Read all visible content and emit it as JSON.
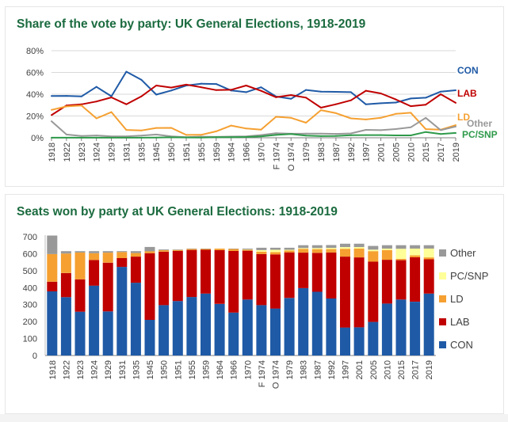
{
  "chart_data": [
    {
      "type": "line",
      "title": "Share of the vote by party: UK General Elections, 1918-2019",
      "categories": [
        "1918",
        "1922",
        "1923",
        "1924",
        "1929",
        "1931",
        "1935",
        "1945",
        "1950",
        "1951",
        "1955",
        "1959",
        "1964",
        "1966",
        "1970",
        "F 1974",
        "O 1974",
        "1979",
        "1983",
        "1987",
        "1992",
        "1997",
        "2001",
        "2005",
        "2010",
        "2015",
        "2017",
        "2019"
      ],
      "y_ticks": [
        "0%",
        "20%",
        "40%",
        "60%",
        "80%"
      ],
      "ylim": [
        0,
        80
      ],
      "grid": true,
      "series": [
        {
          "name": "CON",
          "color": "#1f5aa6",
          "values": [
            38.4,
            38.5,
            38.0,
            46.8,
            38.1,
            60.7,
            53.3,
            39.6,
            43.4,
            48.0,
            49.7,
            49.4,
            43.4,
            41.9,
            46.4,
            37.9,
            35.8,
            43.9,
            42.4,
            42.2,
            41.9,
            30.7,
            31.7,
            32.4,
            36.1,
            36.8,
            42.4,
            43.6
          ]
        },
        {
          "name": "LAB",
          "color": "#c00000",
          "values": [
            20.8,
            29.7,
            30.7,
            33.3,
            37.1,
            30.8,
            38.0,
            48.0,
            46.1,
            48.8,
            46.4,
            43.8,
            44.1,
            48.0,
            43.1,
            37.2,
            39.2,
            36.9,
            27.6,
            30.8,
            34.4,
            43.2,
            40.7,
            35.2,
            29.0,
            30.4,
            40.0,
            32.1
          ]
        },
        {
          "name": "LD",
          "color": "#f5a031",
          "values": [
            25.6,
            28.8,
            29.7,
            17.8,
            23.6,
            7.2,
            6.7,
            9.0,
            9.1,
            2.6,
            2.7,
            5.9,
            11.2,
            8.5,
            7.5,
            19.3,
            18.3,
            13.8,
            25.4,
            22.6,
            17.8,
            16.8,
            18.3,
            22.0,
            23.0,
            7.9,
            7.4,
            11.6
          ]
        },
        {
          "name": "Other",
          "color": "#999999",
          "values": [
            15.2,
            3.0,
            1.6,
            2.1,
            1.2,
            1.3,
            2.0,
            3.0,
            1.3,
            0.5,
            1.0,
            0.8,
            1.1,
            1.2,
            2.5,
            4.2,
            3.7,
            3.8,
            3.8,
            3.6,
            4.0,
            7.3,
            7.0,
            8.0,
            9.6,
            18.3,
            7.0,
            10.3
          ]
        },
        {
          "name": "PC/SNP",
          "color": "#2e9a4a",
          "values": [
            0.1,
            0.1,
            0.1,
            0.1,
            0.1,
            0.1,
            0.1,
            0.2,
            0.4,
            0.3,
            0.2,
            0.6,
            0.6,
            0.7,
            1.3,
            2.6,
            3.5,
            2.0,
            1.5,
            1.7,
            2.3,
            2.5,
            2.5,
            2.2,
            2.2,
            5.3,
            3.5,
            4.4
          ]
        }
      ]
    },
    {
      "type": "bar",
      "stacked": true,
      "title": "Seats won by party at UK General Elections: 1918-2019",
      "categories": [
        "1918",
        "1922",
        "1923",
        "1924",
        "1929",
        "1931",
        "1935",
        "1945",
        "1950",
        "1951",
        "1955",
        "1959",
        "1964",
        "1966",
        "1970",
        "F 1974",
        "O 1974",
        "1979",
        "1983",
        "1987",
        "1992",
        "1997",
        "2001",
        "2005",
        "2010",
        "2015",
        "2017",
        "2019"
      ],
      "y_ticks": [
        "0",
        "100",
        "200",
        "300",
        "400",
        "500",
        "600",
        "700"
      ],
      "ylim": [
        0,
        700
      ],
      "grid": false,
      "series": [
        {
          "name": "CON",
          "color": "#1f5aa6",
          "values": [
            378,
            344,
            258,
            412,
            260,
            522,
            429,
            210,
            297,
            321,
            345,
            365,
            304,
            253,
            330,
            297,
            277,
            339,
            397,
            376,
            336,
            165,
            166,
            198,
            306,
            330,
            317,
            365
          ]
        },
        {
          "name": "LAB",
          "color": "#c00000",
          "values": [
            57,
            142,
            191,
            151,
            287,
            52,
            154,
            393,
            315,
            295,
            277,
            258,
            317,
            363,
            288,
            301,
            319,
            269,
            209,
            229,
            271,
            418,
            412,
            355,
            258,
            232,
            262,
            202
          ]
        },
        {
          "name": "LD",
          "color": "#f5a031",
          "values": [
            163,
            115,
            158,
            40,
            59,
            36,
            21,
            12,
            9,
            6,
            6,
            6,
            9,
            12,
            6,
            14,
            13,
            11,
            23,
            22,
            20,
            46,
            52,
            62,
            57,
            8,
            12,
            11
          ]
        },
        {
          "name": "PC/SNP",
          "color": "#ffff99",
          "values": [
            0,
            0,
            0,
            0,
            0,
            0,
            0,
            0,
            0,
            0,
            0,
            0,
            0,
            0,
            1,
            9,
            14,
            4,
            4,
            6,
            7,
            10,
            9,
            9,
            9,
            59,
            39,
            52
          ]
        },
        {
          "name": "Other",
          "color": "#999999",
          "values": [
            109,
            14,
            8,
            12,
            9,
            5,
            11,
            25,
            4,
            3,
            2,
            1,
            0,
            2,
            5,
            14,
            12,
            12,
            17,
            17,
            17,
            20,
            20,
            22,
            20,
            21,
            20,
            20
          ]
        }
      ],
      "legend_order": [
        "Other",
        "PC/SNP",
        "LD",
        "LAB",
        "CON"
      ],
      "legend_position": "right"
    }
  ]
}
